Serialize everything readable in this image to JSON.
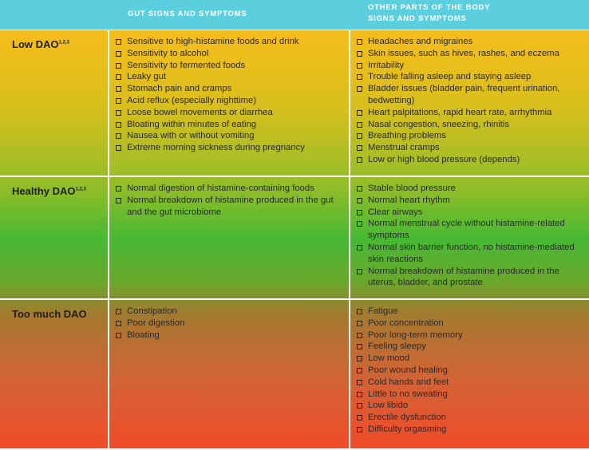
{
  "header": {
    "columns": [
      "GUT SIGNS AND SYMPTOMS",
      "OTHER PARTS OF THE BODY SIGNS AND SYMPTOMS"
    ]
  },
  "rows": [
    {
      "label": "Low DAO",
      "sup": "1,2,3",
      "gut": [
        "Sensitive to high-histamine foods and drink",
        "Sensitivity to alcohol",
        "Sensitivity to fermented foods",
        "Leaky gut",
        "Stomach pain and cramps",
        "Acid reflux (especially nighttime)",
        "Loose bowel movements or diarrhea",
        "Bloating within minutes of eating",
        "Nausea with or without vomiting",
        "Extreme morning sickness during pregnancy"
      ],
      "body": [
        "Headaches and migraines",
        "Skin issues, such as hives, rashes, and eczema",
        "Irritability",
        "Trouble falling asleep and staying asleep",
        "Bladder issues (bladder pain, frequent urination, bedwetting)",
        "Heart palpitations, rapid heart rate, arrhythmia",
        "Nasal congestion, sneezing, rhinitis",
        "Breathing problems",
        "Menstrual cramps",
        "Low or high blood pressure (depends)"
      ]
    },
    {
      "label": "Healthy DAO",
      "sup": "1,2,3",
      "gut": [
        "Normal digestion of histamine-containing foods",
        "Normal breakdown of histamine produced in the gut and the gut microbiome"
      ],
      "body": [
        "Stable blood pressure",
        "Normal heart rhythm",
        "Clear airways",
        "Normal menstrual cycle without histamine-related symptoms",
        "Normal skin barrier function, no histamine-mediated skin reactions",
        "Normal breakdown of histamine produced in the uterus, bladder, and prostate"
      ]
    },
    {
      "label": "Too much DAO",
      "sup": null,
      "gut": [
        "Constipation",
        "Poor digestion",
        "Bloating"
      ],
      "body": [
        "Fatigue",
        "Poor concentration",
        "Poor long-term memory",
        "Feeling sleepy",
        "Low mood",
        "Poor wound healing",
        "Cold hands and feet",
        "Little to no sweating",
        "Low libido",
        "Erectile dysfunction",
        "Difficulty orgasming"
      ]
    }
  ]
}
